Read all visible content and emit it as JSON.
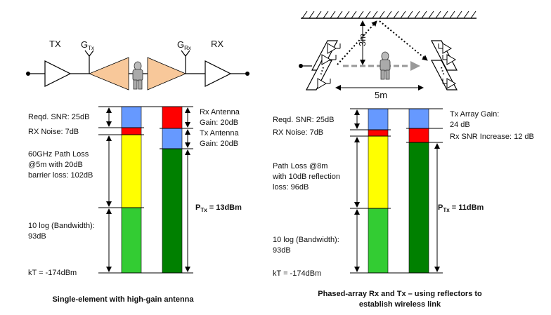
{
  "left": {
    "tx_label": "TX",
    "rx_label": "RX",
    "gtx_main": "G",
    "gtx_sub": "Tx",
    "grx_main": "G",
    "grx_sub": "Rx",
    "budget": {
      "reqd_snr": "Reqd. SNR: 25dB",
      "rx_noise": "RX Noise: 7dB",
      "path_loss_1": "60GHz Path Loss",
      "path_loss_2": "@5m with 20dB",
      "path_loss_3": "barrier loss: 102dB",
      "bw_1": "10 log (Bandwidth):",
      "bw_2": "93dB",
      "kt": "kT = -174dBm",
      "rx_ant_1": "Rx Antenna",
      "rx_ant_2": "Gain: 20dB",
      "tx_ant_1": "Tx Antenna",
      "tx_ant_2": "Gain: 20dB",
      "ptx_main": "P",
      "ptx_sub": "Tx",
      "ptx_val": " = 13dBm"
    },
    "caption": "Single-element with high-gain antenna"
  },
  "right": {
    "dist_vertical": "3m",
    "dist_horizontal": "5m",
    "budget": {
      "reqd_snr": "Reqd. SNR: 25dB",
      "rx_noise": "RX Noise: 7dB",
      "path_loss_1": "Path Loss @8m",
      "path_loss_2": "with 10dB reflection",
      "path_loss_3": "loss: 96dB",
      "bw_1": "10 log (Bandwidth):",
      "bw_2": "93dB",
      "kt": "kT = -174dBm",
      "tx_arr_1": "Tx Array Gain:",
      "tx_arr_2": "24 dB",
      "rx_snr": "Rx SNR Increase: 12 dB",
      "ptx_main": "P",
      "ptx_sub": "Tx",
      "ptx_val": " = 11dBm"
    },
    "caption_1": "Phased-array Rx and Tx – using reflectors to",
    "caption_2": "establish wireless link"
  },
  "colors": {
    "blue": "#6699ff",
    "red": "#ff0000",
    "yellow": "#ffff00",
    "light_green": "#33cc33",
    "dark_green": "#008000",
    "beam": "#f8c89a",
    "arrow_gray": "#999999"
  }
}
